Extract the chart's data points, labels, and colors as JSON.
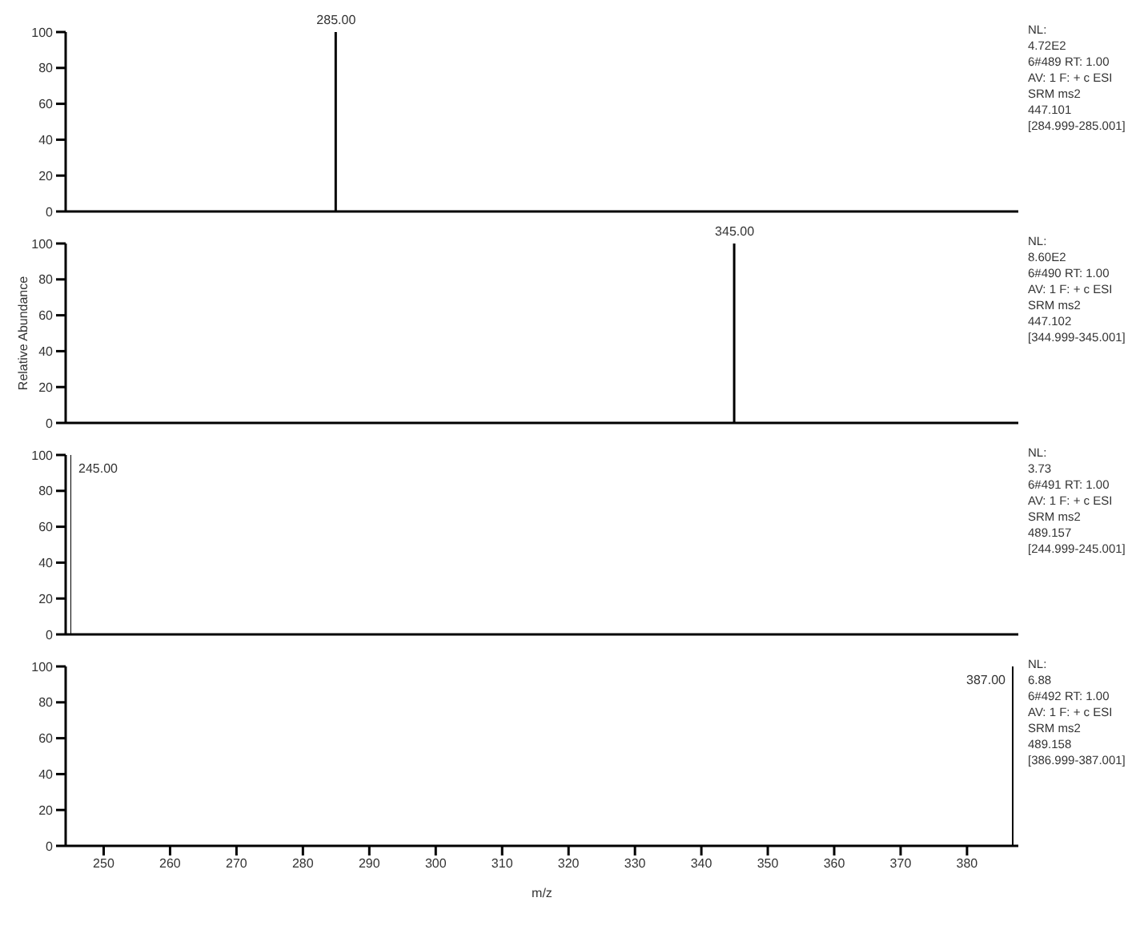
{
  "chart_data": [
    {
      "type": "bar",
      "x": [
        285
      ],
      "values": [
        100
      ],
      "color": "#000000",
      "xlim": [
        245,
        387
      ],
      "ylim": [
        0,
        100
      ],
      "yticks": [
        0,
        20,
        40,
        60,
        80,
        100
      ],
      "tick_labels": "y",
      "grid": false,
      "legend": false,
      "annotations": [
        {
          "text": "285.00",
          "x": 285,
          "y": 100
        },
        "NL:",
        "4.72E2",
        "6#489  RT: 1.00",
        "AV: 1 F: + c ESI",
        "SRM ms2",
        "447.101",
        "[284.999-285.001]"
      ]
    },
    {
      "type": "bar",
      "x": [
        345
      ],
      "values": [
        100
      ],
      "color": "#000000",
      "xlim": [
        245,
        387
      ],
      "ylim": [
        0,
        100
      ],
      "yticks": [
        0,
        20,
        40,
        60,
        80,
        100
      ],
      "tick_labels": "y",
      "grid": false,
      "legend": false,
      "ylabel": "Relative Abundance",
      "annotations": [
        {
          "text": "345.00",
          "x": 345,
          "y": 100
        },
        "NL:",
        "8.60E2",
        "6#490  RT: 1.00",
        "AV: 1 F: + c ESI",
        "SRM ms2",
        "447.102",
        "[344.999-345.001]"
      ]
    },
    {
      "type": "bar",
      "x": [
        245
      ],
      "values": [
        100
      ],
      "color": "#000000",
      "xlim": [
        245,
        387
      ],
      "ylim": [
        0,
        100
      ],
      "yticks": [
        0,
        20,
        40,
        60,
        80,
        100
      ],
      "tick_labels": "y",
      "grid": false,
      "legend": false,
      "annotations": [
        {
          "text": "245.00",
          "x": 245,
          "y": 100
        },
        "NL:",
        "3.73",
        "6#491  RT: 1.00",
        "AV: 1 F: + c ESI",
        "SRM ms2",
        "489.157",
        "[244.999-245.001]"
      ]
    },
    {
      "type": "bar",
      "x": [
        387
      ],
      "values": [
        100
      ],
      "color": "#000000",
      "xlim": [
        245,
        387
      ],
      "ylim": [
        0,
        100
      ],
      "yticks": [
        0,
        20,
        40,
        60,
        80,
        100
      ],
      "xticks": [
        250,
        260,
        270,
        280,
        290,
        300,
        310,
        320,
        330,
        340,
        350,
        360,
        370,
        380
      ],
      "xlabel": "m/z",
      "grid": false,
      "legend": false,
      "annotations": [
        {
          "text": "387.00",
          "x": 387,
          "y": 100
        },
        "NL:",
        "6.88",
        "6#492  RT: 1.00",
        "AV: 1 F: + c ESI",
        "SRM ms2",
        "489.158",
        "[386.999-387.001]"
      ]
    }
  ]
}
